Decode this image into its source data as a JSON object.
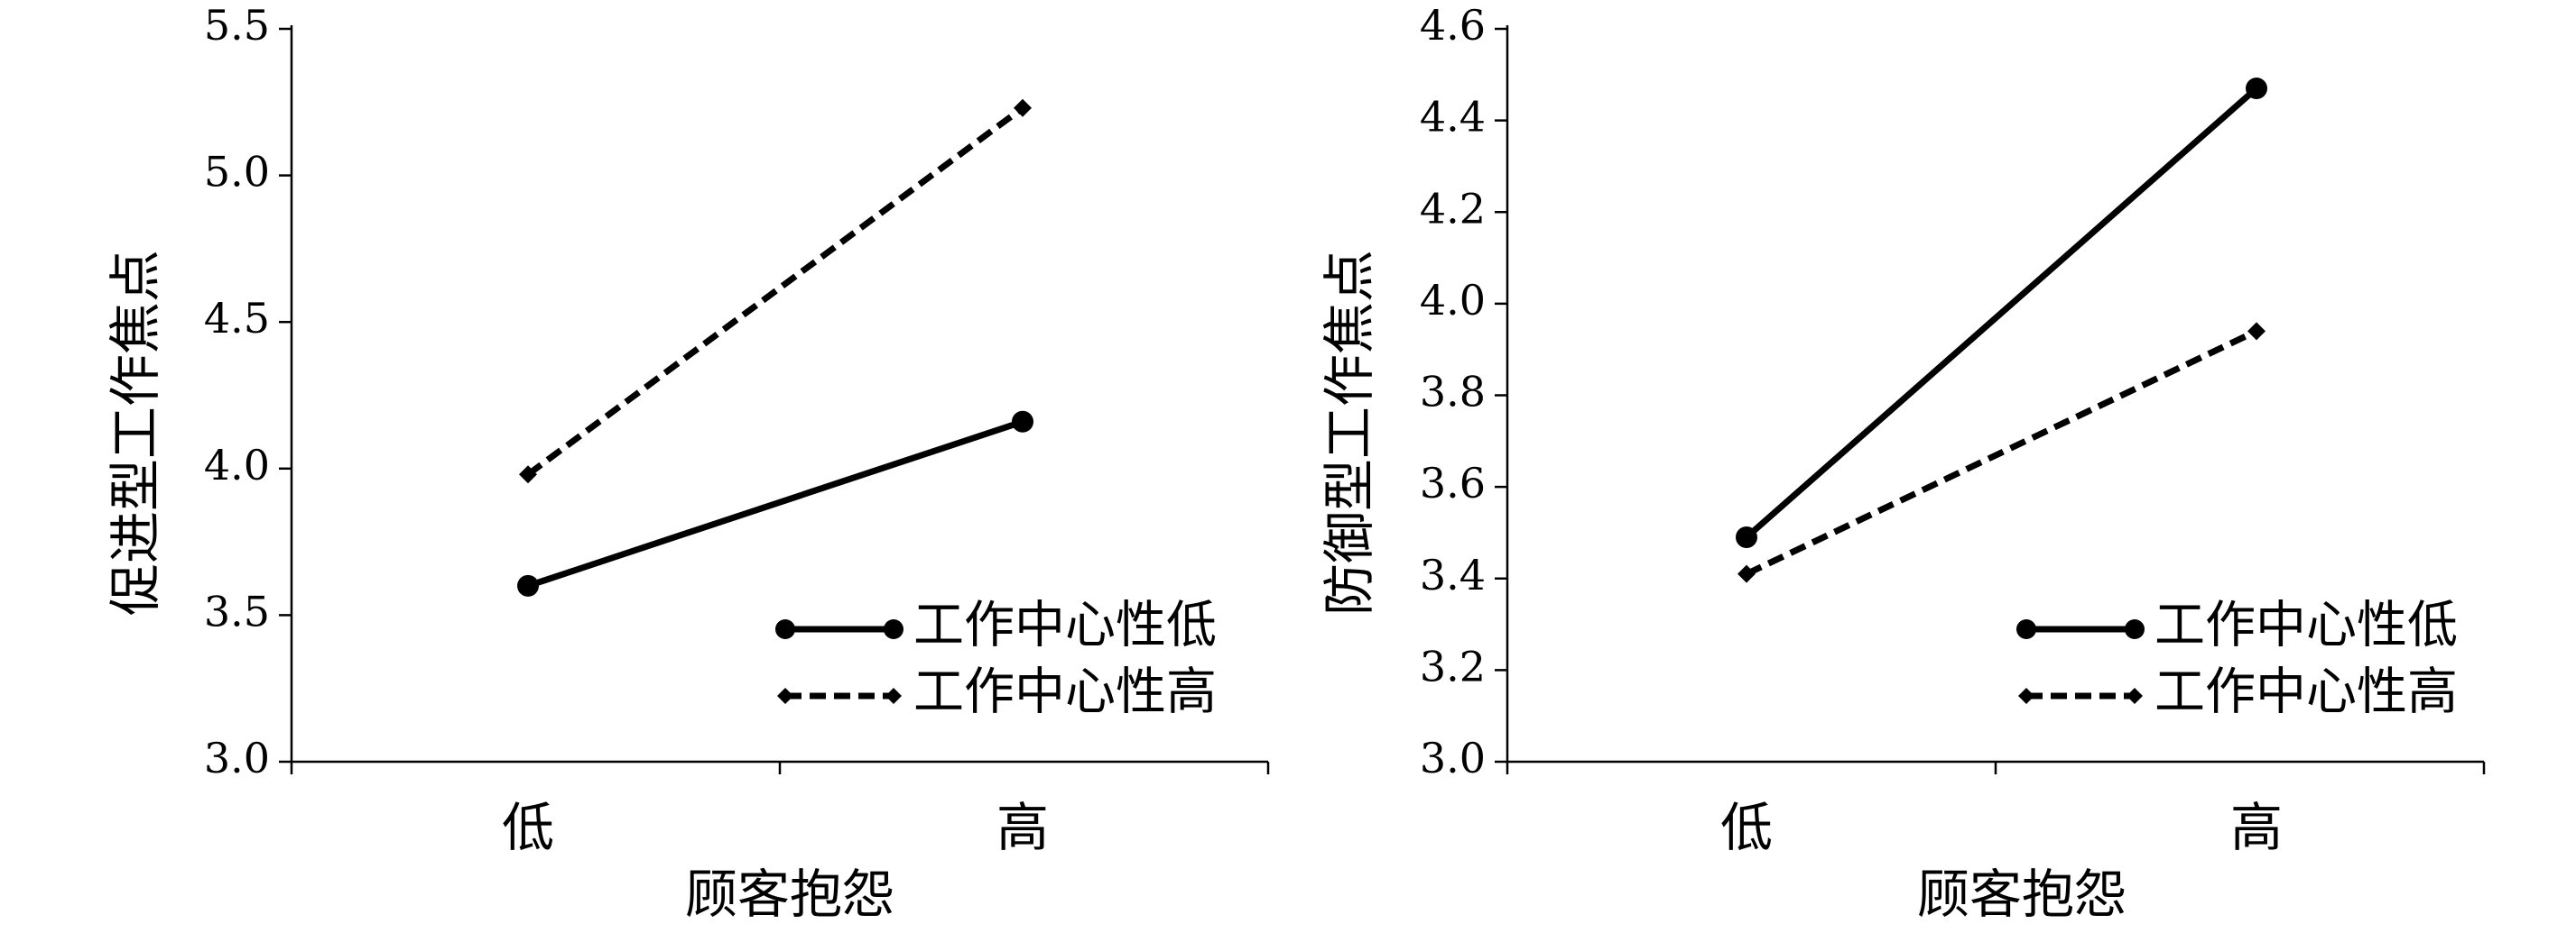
{
  "chart_data": [
    {
      "type": "line",
      "xlabel": "顾客抱怨",
      "ylabel": "促进型工作焦点",
      "categories": [
        "低",
        "高"
      ],
      "ylim": [
        3.0,
        5.5
      ],
      "yticks": [
        "3.0",
        "3.5",
        "4.0",
        "4.5",
        "5.0",
        "5.5"
      ],
      "grid": false,
      "legend": "bottom-right",
      "series": [
        {
          "name": "工作中心性低",
          "style": "solid",
          "marker": "circle",
          "values": [
            3.6,
            4.16
          ]
        },
        {
          "name": "工作中心性高",
          "style": "dashed",
          "marker": "diamond",
          "values": [
            3.98,
            5.23
          ]
        }
      ]
    },
    {
      "type": "line",
      "xlabel": "顾客抱怨",
      "ylabel": "防御型工作焦点",
      "categories": [
        "低",
        "高"
      ],
      "ylim": [
        3.0,
        4.6
      ],
      "yticks": [
        "3.0",
        "3.2",
        "3.4",
        "3.6",
        "3.8",
        "4.0",
        "4.2",
        "4.4",
        "4.6"
      ],
      "grid": false,
      "legend": "bottom-right",
      "series": [
        {
          "name": "工作中心性低",
          "style": "solid",
          "marker": "circle",
          "values": [
            3.49,
            4.47
          ]
        },
        {
          "name": "工作中心性高",
          "style": "dashed",
          "marker": "diamond",
          "values": [
            3.41,
            3.94
          ]
        }
      ]
    }
  ],
  "colors": {
    "line": "#000000",
    "background": "#ffffff"
  }
}
